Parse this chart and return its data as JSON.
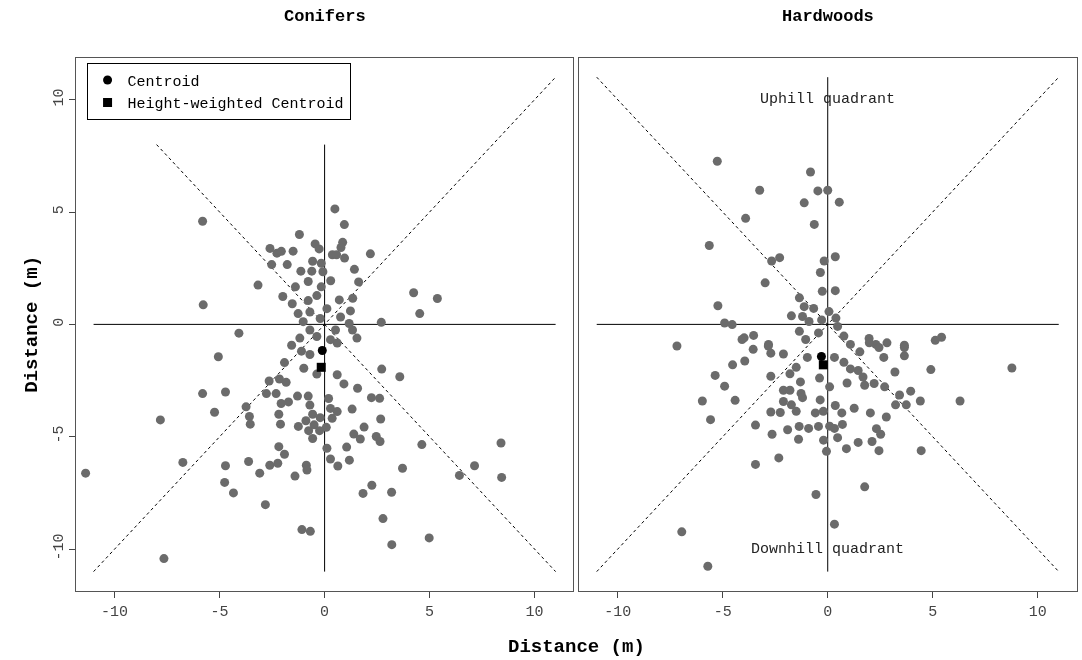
{
  "chart_data": [
    {
      "type": "scatter",
      "title": "Conifers",
      "xlabel": "Distance (m)",
      "ylabel": "Distance (m)",
      "xlim": [
        -11.85,
        11.85
      ],
      "ylim": [
        -11.85,
        11.85
      ],
      "xticks": [
        -10,
        -5,
        0,
        5,
        10
      ],
      "yticks": [
        -10,
        -5,
        0,
        5,
        10
      ],
      "legend": "top left",
      "series": [
        {
          "type": "line",
          "line_style": "solid",
          "color": "#000000",
          "x": [
            -11,
            11
          ],
          "values": [
            0,
            0
          ]
        },
        {
          "type": "line",
          "line_style": "solid",
          "color": "#000000",
          "x": [
            0,
            0
          ],
          "values": [
            -11,
            8
          ]
        },
        {
          "type": "line",
          "line_style": "dotted",
          "color": "#000000",
          "x": [
            -11,
            11
          ],
          "values": [
            -11,
            11
          ]
        },
        {
          "type": "line",
          "line_style": "dotted",
          "color": "#000000",
          "x": [
            -8,
            11
          ],
          "values": [
            8,
            -11
          ]
        },
        {
          "type": "scatter",
          "marker": "circle",
          "color": "#6b6b6b",
          "x": [
            0.49,
            -5.81,
            0.94,
            -1.2,
            -0.45,
            -0.26,
            -2.6,
            -2.27,
            -2.06,
            -1.5,
            0.86,
            0.78,
            0.37,
            0.57,
            0.95,
            2.18,
            -2.52,
            -1.78,
            -0.57,
            -0.16,
            1.42,
            -1.13,
            -0.61,
            -0.08,
            0.29,
            1.62,
            -3.17,
            -1.39,
            -0.78,
            -0.16,
            4.24,
            5.37,
            -5.78,
            -1.99,
            -1.54,
            -0.78,
            -0.37,
            0.7,
            1.34,
            4.53,
            1.23,
            0.76,
            -1.26,
            -0.7,
            0.11,
            2.7,
            1.17,
            -1.02,
            -0.21,
            -4.08,
            -0.7,
            0.52,
            1.33,
            1.54,
            -1.18,
            -0.37,
            0.28,
            -1.57,
            0.6,
            -5.06,
            -1.1,
            -0.7,
            -1.91,
            -0.99,
            2.72,
            3.58,
            0.6,
            -2.64,
            -2.15,
            -0.37,
            -1.83,
            -5.81,
            -4.72,
            0.92,
            1.57,
            -2.77,
            -2.31,
            -1.29,
            -0.78,
            2.23,
            2.62,
            -7.82,
            -5.24,
            -3.74,
            -2.07,
            -1.72,
            -0.7,
            0.19,
            0.28,
            0.6,
            1.31,
            -3.58,
            -2.18,
            -0.57,
            -0.21,
            0.36,
            2.67,
            -3.54,
            -2.1,
            -1.25,
            -0.89,
            -0.5,
            0.08,
            1.88,
            -0.76,
            -0.24,
            1.39,
            1.7,
            2.46,
            2.64,
            4.63,
            8.4,
            -0.57,
            -2.18,
            0.11,
            1.05,
            -1.91,
            -6.75,
            -3.62,
            -4.72,
            -2.61,
            -2.23,
            -0.87,
            -0.84,
            -3.09,
            -1.41,
            0.28,
            0.63,
            1.18,
            3.71,
            7.14,
            6.42,
            8.43,
            -11.38,
            -4.76,
            -4.34,
            2.25,
            1.83,
            3.19,
            -2.82,
            2.78,
            -1.08,
            -0.68,
            4.98,
            3.2,
            -7.65
          ],
          "values": [
            5.14,
            4.59,
            4.44,
            4.0,
            3.58,
            3.36,
            3.38,
            3.17,
            3.25,
            3.26,
            3.65,
            3.42,
            3.1,
            3.1,
            2.95,
            3.14,
            2.66,
            2.66,
            2.81,
            2.72,
            2.45,
            2.37,
            2.37,
            2.34,
            1.94,
            1.89,
            1.75,
            1.67,
            1.91,
            1.67,
            1.41,
            1.15,
            0.87,
            1.24,
            0.92,
            1.06,
            1.28,
            1.09,
            1.16,
            0.48,
            0.6,
            0.33,
            0.48,
            0.55,
            0.7,
            0.09,
            0.04,
            0.12,
            0.26,
            -0.39,
            -0.25,
            -0.25,
            -0.25,
            -0.61,
            -0.61,
            -0.54,
            -0.68,
            -0.93,
            -0.83,
            -1.44,
            -1.19,
            -1.34,
            -1.7,
            -1.95,
            -1.99,
            -2.33,
            -2.24,
            -2.52,
            -2.43,
            -2.21,
            -2.58,
            -3.08,
            -3.01,
            -2.65,
            -2.84,
            -3.08,
            -3.08,
            -3.19,
            -3.19,
            -3.26,
            -3.29,
            -4.25,
            -3.91,
            -3.67,
            -3.52,
            -3.45,
            -3.59,
            -3.3,
            -3.74,
            -3.88,
            -3.77,
            -4.1,
            -4.0,
            -4.0,
            -4.15,
            -4.18,
            -4.21,
            -4.44,
            -4.44,
            -4.54,
            -4.29,
            -4.47,
            -4.58,
            -4.57,
            -4.73,
            -4.73,
            -4.88,
            -5.1,
            -4.99,
            -5.21,
            -5.35,
            -5.28,
            -5.08,
            -5.44,
            -5.51,
            -5.46,
            -5.78,
            -6.14,
            -6.1,
            -6.29,
            -6.27,
            -6.18,
            -6.27,
            -6.48,
            -6.62,
            -6.75,
            -5.99,
            -6.3,
            -6.04,
            -6.4,
            -6.29,
            -6.72,
            -6.81,
            -6.62,
            -7.03,
            -7.5,
            -7.16,
            -7.52,
            -7.47,
            -8.02,
            -8.64,
            -9.13,
            -9.21,
            -9.5,
            -9.8,
            -10.42
          ]
        },
        {
          "type": "scatter",
          "marker": "circle",
          "name": "Centroid",
          "color": "#000000",
          "x": [
            -0.11
          ],
          "values": [
            -1.16
          ]
        },
        {
          "type": "scatter",
          "marker": "square",
          "name": "Height-weighted Centroid",
          "color": "#000000",
          "x": [
            -0.16
          ],
          "values": [
            -1.91
          ]
        }
      ]
    },
    {
      "type": "scatter",
      "title": "Hardwoods",
      "xlim": [
        -11.85,
        11.85
      ],
      "ylim": [
        -11.85,
        11.85
      ],
      "xticks": [
        -10,
        -5,
        0,
        5,
        10
      ],
      "tick_labels": "x",
      "annotations": [
        {
          "text": "Uphill quadrant",
          "x": 0,
          "y": 10
        },
        {
          "text": "Downhill quadrant",
          "x": 0,
          "y": -10
        }
      ],
      "series": [
        {
          "type": "line",
          "line_style": "solid",
          "color": "#000000",
          "x": [
            -11,
            11
          ],
          "values": [
            0,
            0
          ]
        },
        {
          "type": "line",
          "line_style": "solid",
          "color": "#000000",
          "x": [
            0,
            0
          ],
          "values": [
            -11,
            11
          ]
        },
        {
          "type": "line",
          "line_style": "dotted",
          "color": "#000000",
          "x": [
            -11,
            11
          ],
          "values": [
            -11,
            11
          ]
        },
        {
          "type": "line",
          "line_style": "dotted",
          "color": "#000000",
          "x": [
            -11,
            11
          ],
          "values": [
            11,
            -11
          ]
        },
        {
          "type": "scatter",
          "marker": "circle",
          "color": "#6b6b6b",
          "x": [
            -5.26,
            -0.82,
            -3.24,
            -0.47,
            0,
            -1.12,
            0.55,
            -3.91,
            -0.64,
            -5.64,
            -2.29,
            -2.67,
            0.36,
            -0.17,
            -0.35,
            -2.98,
            -0.26,
            0.36,
            -5.23,
            -1.35,
            -4.91,
            -4.55,
            -1.73,
            -1.12,
            -0.67,
            0.06,
            0.39,
            -1.2,
            -0.89,
            -0.29,
            0.47,
            -1.35,
            -0.44,
            -3.53,
            -3.98,
            0.77,
            1.97,
            2.82,
            5.12,
            5.42,
            -7.18,
            -2.82,
            1.08,
            2.29,
            3.65,
            -4.08,
            -3.55,
            -2.83,
            -2.71,
            -2.11,
            -1.05,
            -0.97,
            0.32,
            0.77,
            1.53,
            1.98,
            2.44,
            2.67,
            3.65,
            3.65,
            4.91,
            8.77,
            -4.53,
            -3.95,
            -5.36,
            -4.91,
            -5.97,
            -4.41,
            -5.58,
            -2.71,
            -1.8,
            -1.5,
            -1.3,
            -0.39,
            0.09,
            1.08,
            1.45,
            1.68,
            0.92,
            1.76,
            2.21,
            2.71,
            3.2,
            3.42,
            3.95,
            4.41,
            6.3,
            3.23,
            3.74,
            -2.11,
            -2.11,
            -1.8,
            -1.27,
            -1.2,
            -1.73,
            -1.5,
            -0.36,
            -2.71,
            -2.26,
            -0.59,
            -0.21,
            0.36,
            0.67,
            1.26,
            2.03,
            2.79,
            -3.44,
            -2.65,
            -1.91,
            -1.36,
            -0.91,
            -0.44,
            0.09,
            0.32,
            0.7,
            -1.39,
            -0.2,
            0.47,
            1.45,
            2.11,
            2.32,
            2.52,
            0.89,
            2.44,
            4.45,
            -0.06,
            -2.33,
            -3.44,
            1.76,
            -0.56,
            0.32,
            -6.95,
            -5.71
          ],
          "values": [
            7.26,
            6.78,
            5.97,
            5.94,
            5.97,
            5.41,
            5.44,
            4.72,
            4.45,
            3.51,
            2.97,
            2.82,
            3.01,
            2.82,
            2.31,
            1.85,
            1.47,
            1.5,
            0.83,
            1.18,
            0.06,
            -0.01,
            0.38,
            0.79,
            0.71,
            0.57,
            0.28,
            0.35,
            0.13,
            0.2,
            -0.09,
            -0.31,
            -0.38,
            -0.49,
            -0.6,
            -0.52,
            -0.63,
            -0.82,
            -0.71,
            -0.57,
            -0.96,
            -0.89,
            -0.89,
            -0.89,
            -0.93,
            -0.67,
            -1.11,
            -0.96,
            -1.28,
            -1.32,
            -0.67,
            -1.47,
            -1.47,
            -1.69,
            -1.22,
            -0.82,
            -1.03,
            -1.47,
            -1.03,
            -1.4,
            -2.01,
            -1.94,
            -1.8,
            -1.63,
            -2.27,
            -2.75,
            -3.41,
            -3.38,
            -4.24,
            -2.31,
            -2.2,
            -1.91,
            -2.56,
            -2.39,
            -2.78,
            -1.98,
            -2.05,
            -2.34,
            -2.61,
            -2.71,
            -2.63,
            -2.78,
            -2.12,
            -3.14,
            -2.97,
            -3.41,
            -3.41,
            -3.58,
            -3.58,
            -2.93,
            -3.43,
            -2.93,
            -3.07,
            -3.26,
            -3.58,
            -3.87,
            -3.36,
            -3.9,
            -3.92,
            -3.94,
            -3.87,
            -3.61,
            -3.94,
            -3.73,
            -3.94,
            -4.12,
            -4.48,
            -4.89,
            -4.69,
            -4.54,
            -4.63,
            -4.54,
            -4.53,
            -4.63,
            -4.45,
            -5.11,
            -5.15,
            -5.04,
            -5.25,
            -5.21,
            -4.64,
            -4.89,
            -5.53,
            -5.62,
            -5.62,
            -5.65,
            -5.94,
            -6.23,
            -7.23,
            -7.57,
            -8.89,
            -9.23,
            -10.76
          ]
        },
        {
          "type": "scatter",
          "marker": "circle",
          "color": "#000000",
          "x": [
            -0.3
          ],
          "values": [
            -1.43
          ]
        },
        {
          "type": "scatter",
          "marker": "square",
          "color": "#000000",
          "x": [
            -0.21
          ],
          "values": [
            -1.8
          ]
        }
      ]
    }
  ]
}
